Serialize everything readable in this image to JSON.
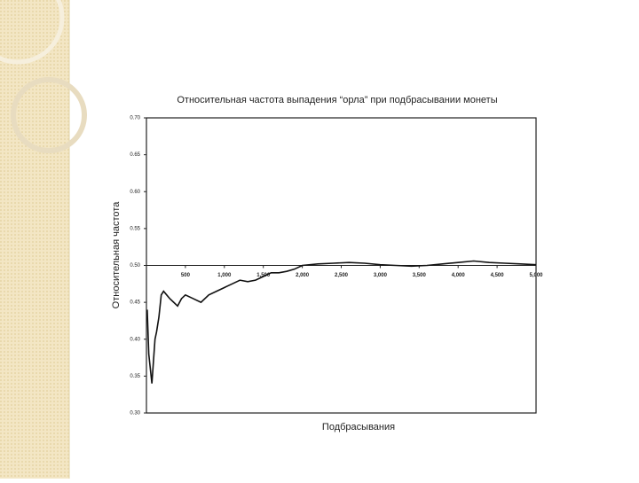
{
  "chart_data": {
    "type": "line",
    "title": "Относительная частота выпадения “орла” при подбрасывании монеты",
    "y_label": "Относительная частота",
    "x_label": "Подбрасывания",
    "xlim": [
      0,
      5000
    ],
    "ylim": [
      0.3,
      0.7
    ],
    "yticks": [
      {
        "value": 0.3,
        "label": "0.30"
      },
      0.35,
      {
        "value": 0.4,
        "label": "0.40"
      },
      0.45,
      {
        "value": 0.5,
        "label": "0.50"
      },
      0.55,
      {
        "value": 0.6,
        "label": "0.60"
      },
      0.65,
      {
        "value": 0.7,
        "label": "0.70"
      }
    ],
    "xticks": [
      500,
      {
        "value": 1000,
        "label": "1,000"
      },
      {
        "value": 1500,
        "label": "1,500"
      },
      {
        "value": 2000,
        "label": "2,000"
      },
      {
        "value": 2500,
        "label": "2,500"
      },
      {
        "value": 3000,
        "label": "3,000"
      },
      {
        "value": 3500,
        "label": "3,500"
      },
      {
        "value": 4000,
        "label": "4,000"
      },
      {
        "value": 4500,
        "label": "4,500"
      },
      {
        "value": 5000,
        "label": "5,000"
      }
    ],
    "x": [
      10,
      30,
      50,
      70,
      90,
      110,
      130,
      160,
      190,
      220,
      260,
      300,
      350,
      400,
      450,
      500,
      600,
      700,
      800,
      900,
      1000,
      1100,
      1200,
      1300,
      1400,
      1500,
      1600,
      1700,
      1800,
      1900,
      2000,
      2200,
      2400,
      2600,
      2800,
      3000,
      3200,
      3400,
      3600,
      3800,
      4000,
      4200,
      4400,
      4600,
      4800,
      5000
    ],
    "series": [
      {
        "color": "#111111",
        "values": [
          0.44,
          0.38,
          0.36,
          0.34,
          0.37,
          0.4,
          0.41,
          0.43,
          0.46,
          0.465,
          0.46,
          0.455,
          0.45,
          0.445,
          0.455,
          0.46,
          0.455,
          0.45,
          0.46,
          0.465,
          0.47,
          0.475,
          0.48,
          0.478,
          0.48,
          0.485,
          0.49,
          0.49,
          0.492,
          0.495,
          0.5,
          0.502,
          0.503,
          0.504,
          0.503,
          0.501,
          0.5,
          0.499,
          0.5,
          0.502,
          0.504,
          0.506,
          0.504,
          0.503,
          0.502,
          0.501
        ]
      }
    ]
  }
}
